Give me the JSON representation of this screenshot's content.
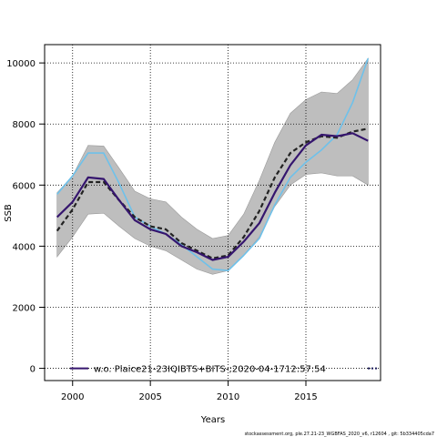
{
  "chart_data": {
    "type": "line",
    "xlabel": "Years",
    "ylabel": "SSB",
    "xlim": [
      1998.2,
      2019.8
    ],
    "ylim": [
      -400,
      10600
    ],
    "xticks": [
      2000,
      2005,
      2010,
      2015
    ],
    "yticks": [
      0,
      2000,
      4000,
      6000,
      8000,
      10000
    ],
    "grid": true,
    "grid_style": "dotted",
    "legend_position": "bottom",
    "x": [
      1999,
      2000,
      2001,
      2002,
      2003,
      2004,
      2005,
      2006,
      2007,
      2008,
      2009,
      2010,
      2011,
      2012,
      2013,
      2014,
      2015,
      2016,
      2017,
      2018,
      2019
    ],
    "band": {
      "color": "#bebebe",
      "lower": [
        3650,
        4300,
        5050,
        5080,
        4650,
        4250,
        4000,
        3850,
        3550,
        3250,
        3080,
        3200,
        3700,
        4300,
        5300,
        6000,
        6350,
        6400,
        6300,
        6300,
        6000
      ],
      "upper": [
        5750,
        6300,
        7300,
        7280,
        6550,
        5800,
        5550,
        5450,
        4950,
        4550,
        4250,
        4350,
        5050,
        6150,
        7400,
        8350,
        8800,
        9050,
        9000,
        9450,
        10150
      ]
    },
    "series": [
      {
        "style": "light-blue",
        "color": "#6ec1ea",
        "values": [
          5700,
          6300,
          7050,
          7050,
          6050,
          4950,
          4650,
          4400,
          4050,
          3650,
          3250,
          3200,
          3700,
          4250,
          5350,
          6250,
          6750,
          7150,
          7650,
          8700,
          10150
        ]
      },
      {
        "style": "black-dashed",
        "color": "#222222",
        "values": [
          4500,
          5200,
          6100,
          6100,
          5500,
          4950,
          4650,
          4550,
          4100,
          3850,
          3600,
          3700,
          4300,
          5150,
          6250,
          7050,
          7400,
          7600,
          7550,
          7750,
          7850
        ]
      },
      {
        "name": "w.o. Plaice21-23IQIBTS+BITS-;2020-04-1712:57:54",
        "style": "dark-purple",
        "color": "#35156e",
        "values": [
          4950,
          5450,
          6250,
          6200,
          5500,
          4850,
          4550,
          4400,
          4000,
          3800,
          3550,
          3650,
          4150,
          4750,
          5750,
          6650,
          7300,
          7650,
          7600,
          7700,
          7450
        ]
      }
    ]
  },
  "footer": {
    "text": "stockassessment.org, ple.27.21-23_WGBFAS_2020_v6, r12604 , git: 5b334405cda7"
  }
}
